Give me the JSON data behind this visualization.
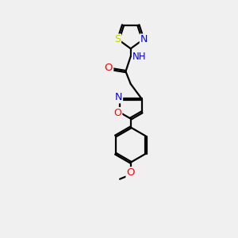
{
  "background_color": "#f0f0f0",
  "bond_color": "black",
  "line_width": 1.6,
  "atom_colors": {
    "N": "#0000ff",
    "O": "#ff0000",
    "S": "#cccc00",
    "C": "black",
    "H": "#008080"
  },
  "font_size": 8.5,
  "figsize": [
    3.0,
    3.0
  ],
  "dpi": 100,
  "xlim": [
    0,
    10
  ],
  "ylim": [
    0,
    14
  ]
}
